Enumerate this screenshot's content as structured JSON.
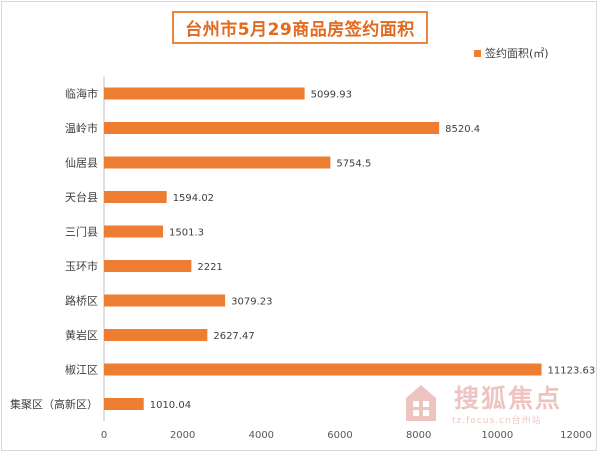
{
  "chart_data": {
    "type": "bar",
    "orientation": "horizontal",
    "title": "台州市5月29商品房签约面积",
    "legend": "签约面积(㎡)",
    "legend_position": "top-right",
    "categories": [
      "临海市",
      "温岭市",
      "仙居县",
      "天台县",
      "三门县",
      "玉环市",
      "路桥区",
      "黄岩区",
      "椒江区",
      "集聚区（高新区）"
    ],
    "values": [
      5099.93,
      8520.4,
      5754.5,
      1594.02,
      1501.3,
      2221,
      3079.23,
      2627.47,
      11123.63,
      1010.04
    ],
    "value_labels": [
      "5099.93",
      "8520.4",
      "5754.5",
      "1594.02",
      "1501.3",
      "2221",
      "3079.23",
      "2627.47",
      "11123.63",
      "1010.04"
    ],
    "xlim": [
      0,
      12000
    ],
    "xticks": [
      0,
      2000,
      4000,
      6000,
      8000,
      10000,
      12000
    ],
    "grid": false,
    "color": "#ed7d31"
  },
  "watermark": {
    "brand": "搜狐焦点",
    "url": "tz.focus.cn台州站"
  }
}
